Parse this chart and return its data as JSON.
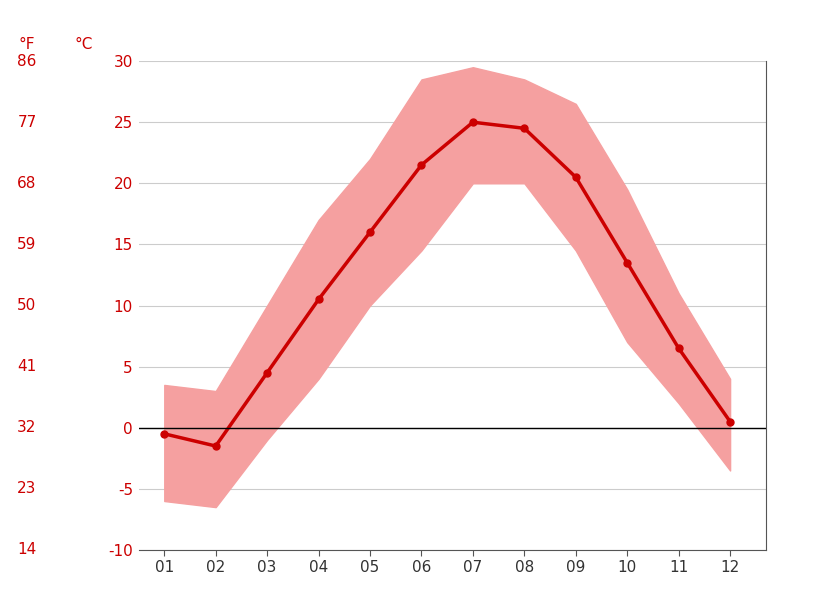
{
  "months": [
    1,
    2,
    3,
    4,
    5,
    6,
    7,
    8,
    9,
    10,
    11,
    12
  ],
  "month_labels": [
    "01",
    "02",
    "03",
    "04",
    "05",
    "06",
    "07",
    "08",
    "09",
    "10",
    "11",
    "12"
  ],
  "mean_temp_c": [
    -0.5,
    -1.5,
    4.5,
    10.5,
    16.0,
    21.5,
    25.0,
    24.5,
    20.5,
    13.5,
    6.5,
    0.5
  ],
  "high_temp_c": [
    3.5,
    3.0,
    10.0,
    17.0,
    22.0,
    28.5,
    29.5,
    28.5,
    26.5,
    19.5,
    11.0,
    4.0
  ],
  "low_temp_c": [
    -6.0,
    -6.5,
    -1.0,
    4.0,
    10.0,
    14.5,
    20.0,
    20.0,
    14.5,
    7.0,
    2.0,
    -3.5
  ],
  "line_color": "#cc0000",
  "fill_color": "#f5a0a0",
  "zero_line_color": "#000000",
  "grid_color": "#cccccc",
  "label_color_red": "#cc0000",
  "bg_color": "#ffffff",
  "ylim_c": [
    -10,
    30
  ],
  "yticks_c": [
    -10,
    -5,
    0,
    5,
    10,
    15,
    20,
    25,
    30
  ],
  "yticks_f": [
    14,
    23,
    32,
    41,
    50,
    59,
    68,
    77,
    86
  ],
  "xlabel_fontsize": 11,
  "ylabel_fontsize": 11,
  "label_header_fontsize": 11
}
